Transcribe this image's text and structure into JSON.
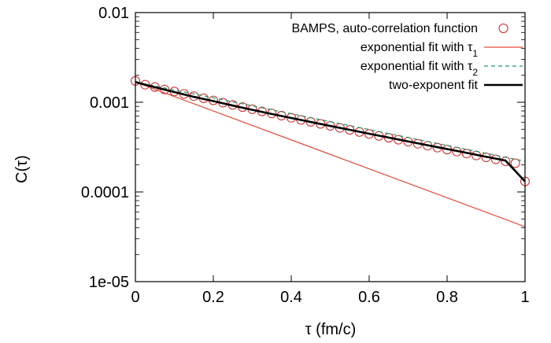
{
  "chart_data": {
    "type": "line",
    "xlabel": "τ (fm/c)",
    "ylabel": "C(τ)",
    "xlim": [
      0,
      1
    ],
    "ylim": [
      1e-05,
      0.01
    ],
    "yscale": "log",
    "grid": false,
    "legend_position": "top-right",
    "x_tick_labels": [
      "0",
      "0.2",
      "0.4",
      "0.6",
      "0.8",
      "1"
    ],
    "y_tick_labels": [
      "1e-05",
      "0.0001",
      "0.001",
      "0.01"
    ],
    "series": [
      {
        "name": "BAMPS, auto-correlation function",
        "style": "open-circles",
        "color": "#cc2222",
        "x": [
          0.0,
          0.025,
          0.05,
          0.075,
          0.1,
          0.125,
          0.15,
          0.175,
          0.2,
          0.225,
          0.25,
          0.275,
          0.3,
          0.325,
          0.35,
          0.375,
          0.4,
          0.425,
          0.45,
          0.475,
          0.5,
          0.525,
          0.55,
          0.575,
          0.6,
          0.625,
          0.65,
          0.675,
          0.7,
          0.725,
          0.75,
          0.775,
          0.8,
          0.825,
          0.85,
          0.875,
          0.9,
          0.925,
          0.95,
          0.975,
          1.0
        ],
        "y": [
          0.00173,
          0.00157,
          0.00148,
          0.00139,
          0.00132,
          0.00124,
          0.00117,
          0.00111,
          0.00105,
          0.000989,
          0.000935,
          0.000884,
          0.000836,
          0.000791,
          0.000749,
          0.000709,
          0.000672,
          0.000637,
          0.000605,
          0.000574,
          0.000545,
          0.000518,
          0.000492,
          0.000467,
          0.000444,
          0.000422,
          0.000402,
          0.000382,
          0.000363,
          0.000345,
          0.000328,
          0.000312,
          0.000297,
          0.000282,
          0.000268,
          0.000255,
          0.000243,
          0.000231,
          0.00022,
          0.000209,
          0.000131
        ]
      },
      {
        "name_prefix": "exponential fit with ",
        "name_symbol": "τ",
        "name_subscript": "1",
        "style": "solid",
        "color": "#e04a3a",
        "width": 1.2,
        "x": [
          0,
          1
        ],
        "y": [
          0.00168,
          4.1e-05
        ]
      },
      {
        "name_prefix": "exponential fit with ",
        "name_symbol": "τ",
        "name_subscript": "2",
        "style": "dashed",
        "color": "#1a9a6a",
        "width": 1.2,
        "x": [
          0,
          1
        ],
        "y": [
          0.00168,
          0.00022
        ]
      },
      {
        "name": "two-exponent fit",
        "style": "solid",
        "color": "#000000",
        "width": 2.6,
        "x": [
          0.0,
          0.05,
          0.1,
          0.15,
          0.2,
          0.25,
          0.3,
          0.35,
          0.4,
          0.45,
          0.5,
          0.55,
          0.6,
          0.65,
          0.7,
          0.75,
          0.8,
          0.85,
          0.9,
          0.95,
          1.0
        ],
        "y": [
          0.00168,
          0.00147,
          0.0013,
          0.00115,
          0.00103,
          0.000919,
          0.000824,
          0.000741,
          0.000668,
          0.000603,
          0.000545,
          0.000493,
          0.000446,
          0.000404,
          0.000366,
          0.000332,
          0.000301,
          0.000273,
          0.000247,
          0.000224,
          0.000131
        ]
      }
    ]
  }
}
